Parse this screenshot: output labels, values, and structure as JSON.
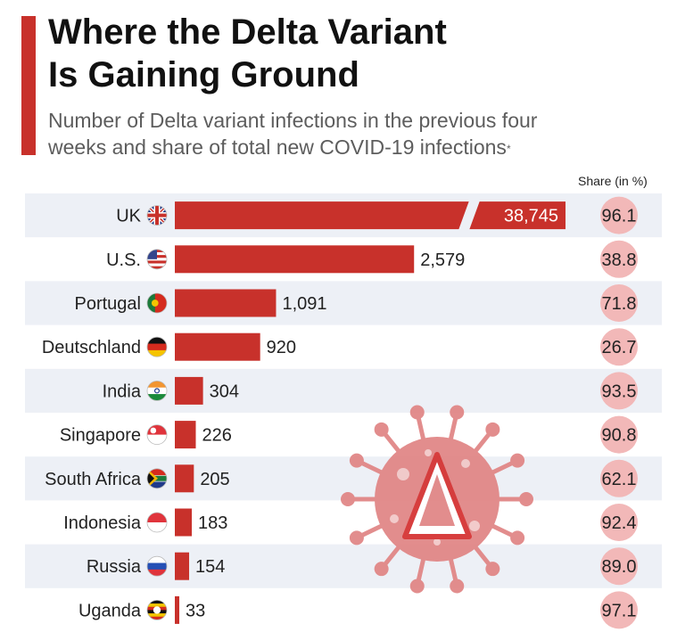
{
  "header": {
    "title_line1": "Where the Delta Variant",
    "title_line2": "Is Gaining Ground",
    "subtitle_line1": "Number of Delta variant infections in the previous four",
    "subtitle_line2": "weeks and share of total new COVID-19 infections",
    "subtitle_mark": "*",
    "share_label": "Share (in %)"
  },
  "colors": {
    "accent": "#c8312b",
    "bar": "#c8312b",
    "row_band": "#edf0f6",
    "circle": "#f2b8b8",
    "virus": "#e08484"
  },
  "chart_data": {
    "type": "bar",
    "orientation": "horizontal",
    "title": "Where the Delta Variant Is Gaining Ground",
    "subtitle": "Number of Delta variant infections in the previous four weeks and share of total new COVID-19 infections*",
    "categories": [
      "UK",
      "U.S.",
      "Portugal",
      "Deutschland",
      "India",
      "Singapore",
      "South Africa",
      "Indonesia",
      "Russia",
      "Uganda"
    ],
    "flag_icons": [
      "uk-flag-icon",
      "us-flag-icon",
      "portugal-flag-icon",
      "germany-flag-icon",
      "india-flag-icon",
      "singapore-flag-icon",
      "south-africa-flag-icon",
      "indonesia-flag-icon",
      "russia-flag-icon",
      "uganda-flag-icon"
    ],
    "series": [
      {
        "name": "Delta variant infections",
        "values": [
          38745,
          2579,
          1091,
          920,
          304,
          226,
          205,
          183,
          154,
          33
        ],
        "labels": [
          "38,745",
          "2,579",
          "1,091",
          "920",
          "304",
          "226",
          "205",
          "183",
          "154",
          "33"
        ]
      },
      {
        "name": "Share (in %)",
        "values": [
          96.1,
          38.8,
          71.8,
          26.7,
          93.5,
          90.8,
          62.1,
          92.4,
          89.0,
          97.1
        ],
        "labels": [
          "96.1",
          "38.8",
          "71.8",
          "26.7",
          "93.5",
          "90.8",
          "62.1",
          "92.4",
          "89.0",
          "97.1"
        ]
      }
    ],
    "axis_break": {
      "category": "UK"
    },
    "xlim": [
      0,
      2800
    ],
    "grid": false,
    "legend": "none"
  }
}
